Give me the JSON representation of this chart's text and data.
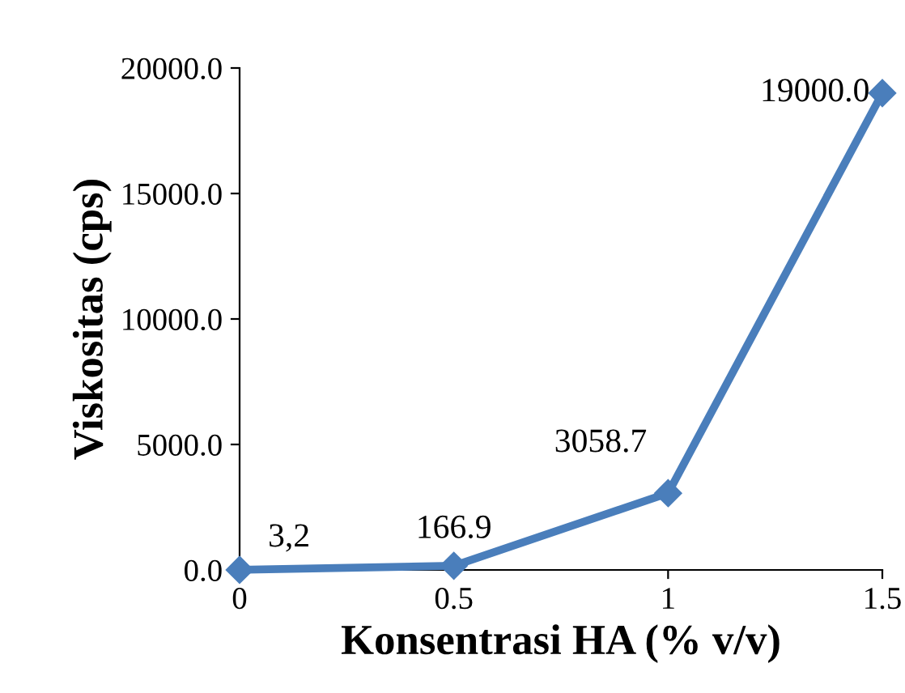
{
  "chart_data": {
    "type": "line",
    "xlabel": "Konsentrasi HA (% v/v)",
    "ylabel": "Viskositas (cps)",
    "x": [
      0,
      0.5,
      1,
      1.5
    ],
    "series": [
      {
        "color": "#4a7ebb",
        "values": [
          3.2,
          166.9,
          3058.7,
          19000.0
        ],
        "value_labels": [
          "3,2",
          "166.9",
          "3058.7",
          "19000.0"
        ]
      }
    ],
    "xlim": [
      0,
      1.5
    ],
    "xticks": [
      0,
      0.5,
      1,
      1.5
    ],
    "ylim": [
      0,
      20000
    ],
    "yticks": [
      {
        "value": 0,
        "label": "0.0"
      },
      {
        "value": 5000,
        "label": "5000.0"
      },
      {
        "value": 10000,
        "label": "10000.0"
      },
      {
        "value": 15000,
        "label": "15000.0"
      },
      {
        "value": 20000,
        "label": "20000.0"
      }
    ],
    "grid": false,
    "marker": "diamond",
    "line_style": "solid"
  }
}
